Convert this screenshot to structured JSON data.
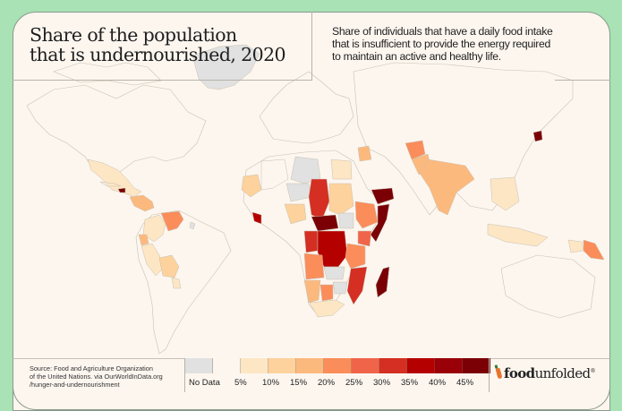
{
  "title": {
    "line1": "Share of the population",
    "line2": "that is undernourished, 2020"
  },
  "subtitle": {
    "line1": "Share of individuals that have a daily food intake",
    "line2": "that is insufficient to provide the energy required",
    "line3": "to maintain an active and healthy life."
  },
  "source": {
    "line1": "Source: Food and Agriculture Organization",
    "line2": "of the United Nations. via OurWorldInData.org",
    "line3": "/hunger-and-undernourishment"
  },
  "legend": {
    "items": [
      {
        "label": "No Data",
        "color": "#e0e1e0"
      },
      {
        "label": "5%",
        "color": "#fcf6ef"
      },
      {
        "label": "10%",
        "color": "#fde6c4"
      },
      {
        "label": "15%",
        "color": "#fdd29c"
      },
      {
        "label": "20%",
        "color": "#fcb97e"
      },
      {
        "label": "25%",
        "color": "#fb8d5a"
      },
      {
        "label": "30%",
        "color": "#f0654a"
      },
      {
        "label": "35%",
        "color": "#d42f22"
      },
      {
        "label": "40%",
        "color": "#b50000"
      },
      {
        "label": "45%",
        "color": "#9a0008"
      },
      {
        "label": "",
        "color": "#7a0005"
      }
    ]
  },
  "logo": {
    "bold": "food",
    "regular": "unfolded",
    "mark": "®"
  },
  "map_data": {
    "regions": [
      {
        "name": "Greenland",
        "category": "No Data"
      },
      {
        "name": "Haiti",
        "category": "45%+"
      },
      {
        "name": "Venezuela",
        "category": "25%"
      },
      {
        "name": "Central America",
        "category": "20%"
      },
      {
        "name": "Mexico",
        "category": "10%"
      },
      {
        "name": "Colombia",
        "category": "10%"
      },
      {
        "name": "Ecuador",
        "category": "20%"
      },
      {
        "name": "Peru",
        "category": "10%"
      },
      {
        "name": "Bolivia",
        "category": "15%"
      },
      {
        "name": "Paraguay",
        "category": "10%"
      },
      {
        "name": "French Guiana",
        "category": "No Data"
      },
      {
        "name": "Western Sahara/Mauritania",
        "category": "15%"
      },
      {
        "name": "Algeria",
        "category": "5%"
      },
      {
        "name": "Libya",
        "category": "No Data"
      },
      {
        "name": "Egypt",
        "category": "10%"
      },
      {
        "name": "Mali",
        "category": "5%"
      },
      {
        "name": "Niger",
        "category": "No Data"
      },
      {
        "name": "Chad",
        "category": "35%"
      },
      {
        "name": "Sudan",
        "category": "15%"
      },
      {
        "name": "Nigeria",
        "category": "15%"
      },
      {
        "name": "Liberia",
        "category": "40%"
      },
      {
        "name": "Central African Republic",
        "category": "45%+"
      },
      {
        "name": "DR Congo",
        "category": "40%"
      },
      {
        "name": "Congo",
        "category": "35%"
      },
      {
        "name": "South Sudan",
        "category": "No Data"
      },
      {
        "name": "Ethiopia",
        "category": "25%"
      },
      {
        "name": "Somalia",
        "category": "45%+"
      },
      {
        "name": "Yemen",
        "category": "45%+"
      },
      {
        "name": "Kenya",
        "category": "30%"
      },
      {
        "name": "Tanzania",
        "category": "25%"
      },
      {
        "name": "Angola",
        "category": "25%"
      },
      {
        "name": "Zambia",
        "category": "No Data"
      },
      {
        "name": "Mozambique",
        "category": "35%"
      },
      {
        "name": "Zimbabwe",
        "category": "No Data"
      },
      {
        "name": "Namibia",
        "category": "20%"
      },
      {
        "name": "Botswana",
        "category": "25%"
      },
      {
        "name": "South Africa",
        "category": "10%"
      },
      {
        "name": "Madagascar",
        "category": "45%+"
      },
      {
        "name": "Afghanistan",
        "category": "25%"
      },
      {
        "name": "Pakistan",
        "category": "20%"
      },
      {
        "name": "India",
        "category": "20%"
      },
      {
        "name": "Iraq",
        "category": "20%"
      },
      {
        "name": "North Korea",
        "category": "45%+"
      },
      {
        "name": "Southeast Asia",
        "category": "10%"
      },
      {
        "name": "Indonesia",
        "category": "10%"
      },
      {
        "name": "Papua New Guinea",
        "category": "25%"
      }
    ]
  }
}
